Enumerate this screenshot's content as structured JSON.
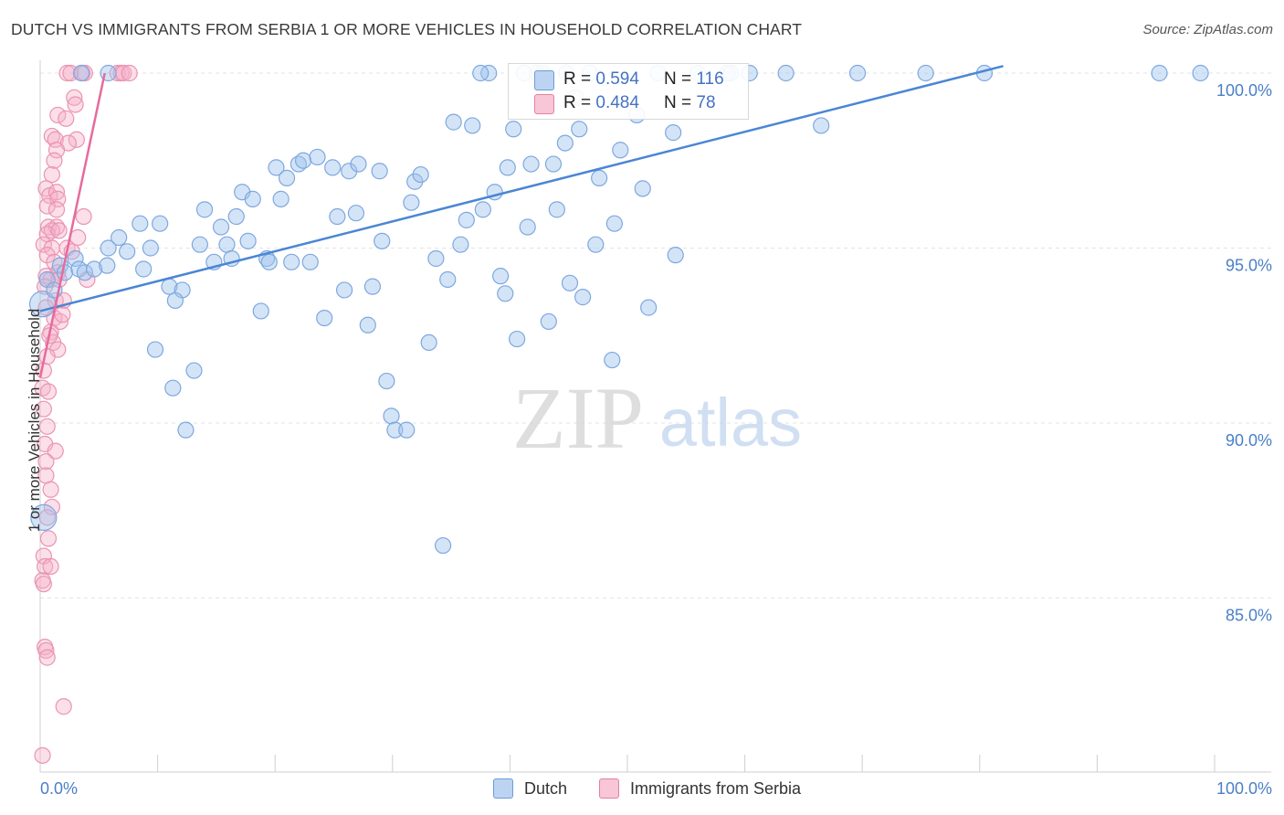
{
  "header": {
    "title": "DUTCH VS IMMIGRANTS FROM SERBIA 1 OR MORE VEHICLES IN HOUSEHOLD CORRELATION CHART",
    "source": "Source: ZipAtlas.com"
  },
  "watermark": {
    "zip": "ZIP",
    "atlas": "atlas"
  },
  "legend": {
    "r_label": "R =",
    "n_label": "N =",
    "entries": [
      {
        "name": "Dutch",
        "r": "0.594",
        "n": "116",
        "fill": "#a9c8ef",
        "stroke": "#6d9bd8"
      },
      {
        "name": "Immigrants from Serbia",
        "r": "0.484",
        "n": "78",
        "fill": "#f6b9cc",
        "stroke": "#e3819f"
      }
    ]
  },
  "chart_data": {
    "type": "scatter",
    "title": "DUTCH VS IMMIGRANTS FROM SERBIA 1 OR MORE VEHICLES IN HOUSEHOLD CORRELATION CHART",
    "xlabel": "",
    "ylabel": "1 or more Vehicles in Household",
    "xlim": [
      0,
      100
    ],
    "ylim": [
      80,
      100.5
    ],
    "x_tick_labels": [
      "0.0%",
      "100.0%"
    ],
    "y_ticks": [
      85,
      90,
      95,
      100
    ],
    "y_tick_labels": [
      "85.0%",
      "90.0%",
      "95.0%",
      "100.0%"
    ],
    "grid": true,
    "colors": {
      "dutch": "#4a86d4",
      "serbia": "#e66b9b",
      "tick_label": "#4a7fc8"
    },
    "series": [
      {
        "name": "Dutch",
        "r": 0.594,
        "n": 116,
        "trend": {
          "x": [
            0,
            82
          ],
          "y": [
            93.2,
            100.2
          ]
        },
        "points": [
          [
            0.2,
            93.4
          ],
          [
            0.3,
            87.3
          ],
          [
            0.6,
            94.1
          ],
          [
            1.2,
            93.8
          ],
          [
            1.7,
            94.5
          ],
          [
            2.1,
            94.3
          ],
          [
            3,
            94.7
          ],
          [
            3.3,
            94.4
          ],
          [
            3.8,
            94.3
          ],
          [
            4.6,
            94.4
          ],
          [
            5.7,
            94.5
          ],
          [
            5.8,
            95
          ],
          [
            6.7,
            95.3
          ],
          [
            7.4,
            94.9
          ],
          [
            8.8,
            94.4
          ],
          [
            8.5,
            95.7
          ],
          [
            9.4,
            95
          ],
          [
            9.8,
            92.1
          ],
          [
            10.2,
            95.7
          ],
          [
            11,
            93.9
          ],
          [
            11.3,
            91
          ],
          [
            12.1,
            93.8
          ],
          [
            12.4,
            89.8
          ],
          [
            13.1,
            91.5
          ],
          [
            13.6,
            95.1
          ],
          [
            14,
            96.1
          ],
          [
            14.8,
            94.6
          ],
          [
            15.4,
            95.6
          ],
          [
            15.9,
            95.1
          ],
          [
            16.3,
            94.7
          ],
          [
            16.7,
            95.9
          ],
          [
            17.2,
            96.6
          ],
          [
            17.7,
            95.2
          ],
          [
            18.1,
            96.4
          ],
          [
            18.8,
            93.2
          ],
          [
            19.3,
            94.7
          ],
          [
            19.5,
            94.6
          ],
          [
            20.1,
            97.3
          ],
          [
            20.5,
            96.4
          ],
          [
            21,
            97
          ],
          [
            21.4,
            94.6
          ],
          [
            22,
            97.4
          ],
          [
            22.4,
            97.5
          ],
          [
            23,
            94.6
          ],
          [
            23.6,
            97.6
          ],
          [
            24.2,
            93
          ],
          [
            24.9,
            97.3
          ],
          [
            25.3,
            95.9
          ],
          [
            25.9,
            93.8
          ],
          [
            26.3,
            97.2
          ],
          [
            26.9,
            96
          ],
          [
            27.1,
            97.4
          ],
          [
            27.9,
            92.8
          ],
          [
            28.3,
            93.9
          ],
          [
            28.9,
            97.2
          ],
          [
            29.5,
            91.2
          ],
          [
            29.9,
            90.2
          ],
          [
            30.2,
            89.8
          ],
          [
            31.2,
            89.8
          ],
          [
            31.6,
            96.3
          ],
          [
            31.9,
            96.9
          ],
          [
            32.4,
            97.1
          ],
          [
            33.1,
            92.3
          ],
          [
            33.7,
            94.7
          ],
          [
            34.3,
            86.5
          ],
          [
            34.7,
            94.1
          ],
          [
            35.2,
            98.6
          ],
          [
            35.8,
            95.1
          ],
          [
            36.3,
            95.8
          ],
          [
            36.8,
            98.5
          ],
          [
            37.7,
            96.1
          ],
          [
            38.2,
            100
          ],
          [
            38.7,
            96.6
          ],
          [
            39.2,
            94.2
          ],
          [
            39.6,
            93.7
          ],
          [
            39.8,
            97.3
          ],
          [
            40.3,
            98.4
          ],
          [
            40.6,
            92.4
          ],
          [
            41.5,
            95.6
          ],
          [
            41.8,
            97.4
          ],
          [
            42.3,
            100
          ],
          [
            43.3,
            92.9
          ],
          [
            43.7,
            97.4
          ],
          [
            44,
            96.1
          ],
          [
            44.7,
            98
          ],
          [
            45.1,
            94
          ],
          [
            45.6,
            99.3
          ],
          [
            45.9,
            98.4
          ],
          [
            46.8,
            100
          ],
          [
            47.3,
            95.1
          ],
          [
            47.6,
            97
          ],
          [
            48.9,
            95.7
          ],
          [
            49.4,
            97.8
          ],
          [
            50.8,
            98.8
          ],
          [
            51.3,
            96.7
          ],
          [
            52.6,
            100
          ],
          [
            53.9,
            98.3
          ],
          [
            56,
            100
          ],
          [
            58.5,
            100
          ],
          [
            60.4,
            100
          ],
          [
            63.5,
            100
          ],
          [
            66.5,
            98.5
          ],
          [
            69.6,
            100
          ],
          [
            75.4,
            100
          ],
          [
            80.4,
            100
          ],
          [
            95.3,
            100
          ],
          [
            98.8,
            100
          ],
          [
            5.8,
            100
          ],
          [
            3.5,
            100
          ],
          [
            42.8,
            100
          ],
          [
            58.8,
            100
          ],
          [
            37.5,
            100
          ],
          [
            41.2,
            100
          ],
          [
            44.8,
            100
          ],
          [
            11.5,
            93.5
          ],
          [
            29.1,
            95.2
          ],
          [
            46.2,
            93.6
          ],
          [
            54.1,
            94.8
          ],
          [
            51.8,
            93.3
          ],
          [
            48.7,
            91.8
          ]
        ]
      },
      {
        "name": "Immigrants from Serbia",
        "r": 0.484,
        "n": 78,
        "trend": {
          "x": [
            0,
            5.5
          ],
          "y": [
            91.3,
            100
          ]
        },
        "points": [
          [
            2.3,
            100
          ],
          [
            2.6,
            100
          ],
          [
            3.6,
            100
          ],
          [
            3.8,
            100
          ],
          [
            6.6,
            100
          ],
          [
            6.9,
            100
          ],
          [
            7.1,
            100
          ],
          [
            7.6,
            100
          ],
          [
            2.9,
            99.3
          ],
          [
            3,
            99.1
          ],
          [
            1.5,
            98.8
          ],
          [
            2.2,
            98.7
          ],
          [
            1,
            98.2
          ],
          [
            1.3,
            98.1
          ],
          [
            3.1,
            98.1
          ],
          [
            2.4,
            98
          ],
          [
            1.4,
            97.8
          ],
          [
            1.2,
            97.5
          ],
          [
            1,
            97.1
          ],
          [
            0.5,
            96.7
          ],
          [
            0.8,
            96.5
          ],
          [
            1.4,
            96.6
          ],
          [
            1.5,
            96.4
          ],
          [
            0.6,
            96.2
          ],
          [
            1.4,
            96.1
          ],
          [
            3.7,
            95.9
          ],
          [
            0.7,
            95.6
          ],
          [
            1.4,
            95.6
          ],
          [
            1,
            95.5
          ],
          [
            0.6,
            95.4
          ],
          [
            1.6,
            95.5
          ],
          [
            0.3,
            95.1
          ],
          [
            1,
            95
          ],
          [
            2.3,
            95
          ],
          [
            0.6,
            94.8
          ],
          [
            1.2,
            94.6
          ],
          [
            1.5,
            94.3
          ],
          [
            0.5,
            94.2
          ],
          [
            0.9,
            94.1
          ],
          [
            1.6,
            94.1
          ],
          [
            4,
            94.1
          ],
          [
            0.4,
            93.9
          ],
          [
            1.3,
            93.5
          ],
          [
            2,
            93.5
          ],
          [
            0.5,
            93.3
          ],
          [
            1.2,
            93
          ],
          [
            1.7,
            92.9
          ],
          [
            0.9,
            92.6
          ],
          [
            1.1,
            92.3
          ],
          [
            1.5,
            92.1
          ],
          [
            0.6,
            91.9
          ],
          [
            0.3,
            91.5
          ],
          [
            0.2,
            91
          ],
          [
            0.3,
            90.4
          ],
          [
            0.6,
            89.9
          ],
          [
            0.4,
            89.4
          ],
          [
            1.3,
            89.2
          ],
          [
            0.5,
            88.9
          ],
          [
            0.5,
            88.5
          ],
          [
            0.9,
            88.1
          ],
          [
            1,
            87.6
          ],
          [
            0.6,
            87.3
          ],
          [
            0.7,
            86.7
          ],
          [
            0.3,
            86.2
          ],
          [
            0.4,
            85.9
          ],
          [
            0.9,
            85.9
          ],
          [
            0.2,
            85.5
          ],
          [
            0.3,
            85.4
          ],
          [
            0.4,
            83.6
          ],
          [
            0.5,
            83.5
          ],
          [
            0.6,
            83.3
          ],
          [
            2,
            81.9
          ],
          [
            0.2,
            80.5
          ],
          [
            3.2,
            95.3
          ],
          [
            2.7,
            94.9
          ],
          [
            0.8,
            92.5
          ],
          [
            1.9,
            93.1
          ],
          [
            0.7,
            90.9
          ]
        ]
      }
    ]
  }
}
